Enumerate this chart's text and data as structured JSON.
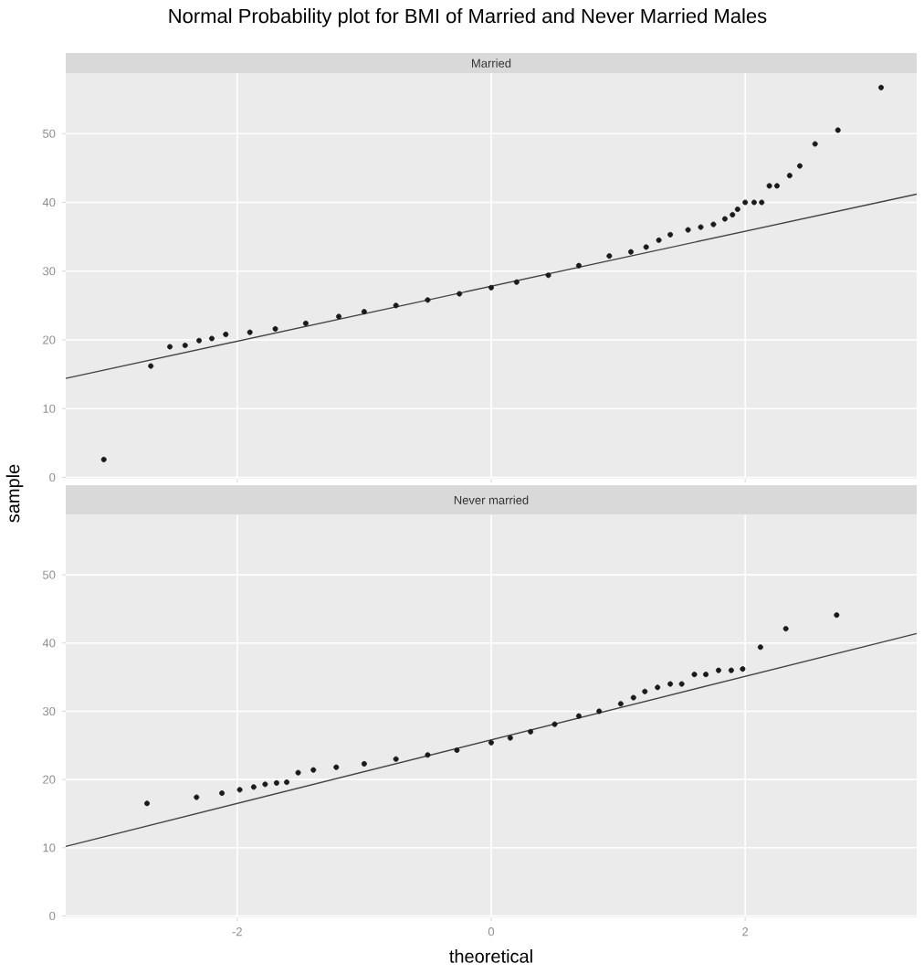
{
  "chart_data": [
    {
      "type": "scatter",
      "title": "Normal Probability plot for BMI of Married and Never Married Males",
      "subtitle": "Married",
      "ylabel": "sample",
      "xlim": [
        -3.35,
        3.35
      ],
      "ylim": [
        -0.2,
        58.8
      ],
      "xticks": [
        -2,
        0,
        2
      ],
      "yticks": [
        0,
        10,
        20,
        30,
        40,
        50
      ],
      "grid": true,
      "tick_labels": "y",
      "marker": "circle",
      "series": [
        {
          "color": "#1a1a1a",
          "x": [
            -3.05,
            -2.68,
            -2.53,
            -2.41,
            -2.3,
            -2.2,
            -2.09,
            -1.9,
            -1.7,
            -1.46,
            -1.2,
            -1.0,
            -0.75,
            -0.5,
            -0.25,
            0,
            0.2,
            0.45,
            0.69,
            0.93,
            1.1,
            1.22,
            1.32,
            1.41,
            1.55,
            1.65,
            1.75,
            1.84,
            1.9,
            1.94,
            2.0,
            2.07,
            2.13,
            2.19,
            2.25,
            2.35,
            2.43,
            2.55,
            2.73,
            3.07
          ],
          "values": [
            2.6,
            16.2,
            19.0,
            19.2,
            19.9,
            20.2,
            20.8,
            21.1,
            21.6,
            22.4,
            23.4,
            24.1,
            25.0,
            25.8,
            26.7,
            27.6,
            28.4,
            29.4,
            30.8,
            32.2,
            32.8,
            33.5,
            34.5,
            35.3,
            36.0,
            36.4,
            36.8,
            37.6,
            38.2,
            39.0,
            40.0,
            40.0,
            40.0,
            42.4,
            42.4,
            43.9,
            45.3,
            48.5,
            50.5,
            56.7
          ]
        },
        {
          "type": "line",
          "color": "#444444",
          "marker": "none",
          "line_style": "solid",
          "x": [
            -3.35,
            3.35
          ],
          "values": [
            14.4,
            41.2
          ]
        }
      ]
    },
    {
      "type": "scatter",
      "subtitle": "Never married",
      "xlabel": "theoretical",
      "xlim": [
        -3.35,
        3.35
      ],
      "ylim": [
        -0.2,
        58.8
      ],
      "xticks": [
        -2,
        0,
        2
      ],
      "yticks": [
        0,
        10,
        20,
        30,
        40,
        50
      ],
      "grid": true,
      "marker": "circle",
      "series": [
        {
          "color": "#1a1a1a",
          "x": [
            -2.71,
            -2.32,
            -2.12,
            -1.98,
            -1.87,
            -1.78,
            -1.69,
            -1.61,
            -1.52,
            -1.4,
            -1.22,
            -1.0,
            -0.75,
            -0.5,
            -0.27,
            0,
            0.15,
            0.31,
            0.5,
            0.69,
            0.85,
            1.02,
            1.12,
            1.21,
            1.31,
            1.41,
            1.5,
            1.6,
            1.69,
            1.79,
            1.89,
            1.98,
            2.12,
            2.32,
            2.72
          ],
          "values": [
            16.5,
            17.4,
            18.0,
            18.5,
            18.9,
            19.3,
            19.5,
            19.6,
            21.0,
            21.4,
            21.8,
            22.3,
            23.0,
            23.6,
            24.3,
            25.4,
            26.1,
            27.0,
            28.1,
            29.3,
            30.0,
            31.1,
            32.0,
            32.9,
            33.5,
            34.0,
            34.0,
            35.4,
            35.4,
            36.0,
            36.0,
            36.2,
            39.4,
            42.1,
            44.1
          ]
        },
        {
          "type": "line",
          "color": "#444444",
          "marker": "none",
          "line_style": "solid",
          "x": [
            -3.35,
            3.35
          ],
          "values": [
            10.2,
            41.4
          ]
        }
      ]
    }
  ]
}
